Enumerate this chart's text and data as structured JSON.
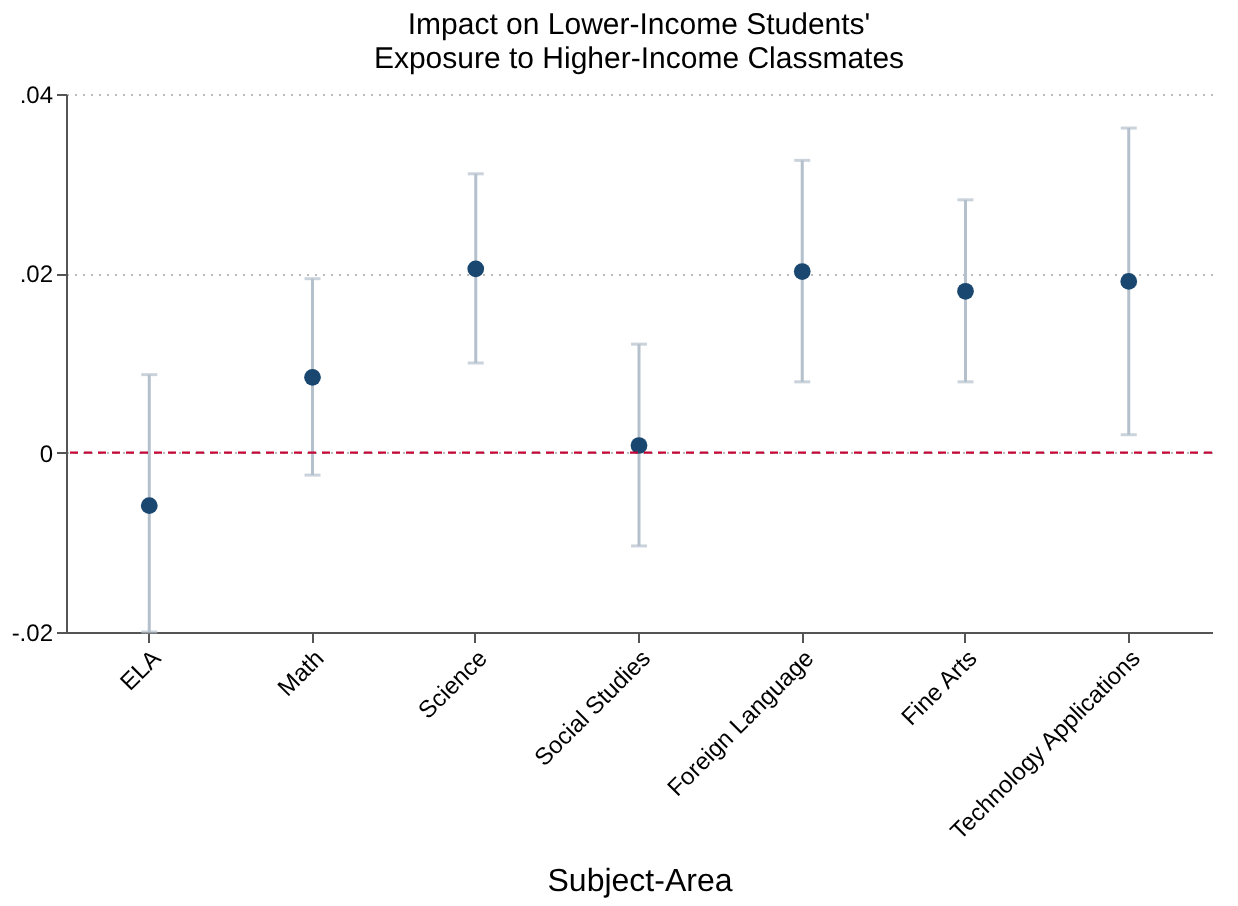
{
  "chart_data": {
    "type": "scatter",
    "title": "Impact on Lower-Income Students' Exposure to Higher-Income Classmates",
    "xlabel": "Subject-Area",
    "categories": [
      "ELA",
      "Math",
      "Science",
      "Social Studies",
      "Foreign Language",
      "Fine Arts",
      "Technology Applications"
    ],
    "series": [
      {
        "color": "#1a476f",
        "values": [
          -0.0059,
          0.0084,
          0.0205,
          0.0008,
          0.0202,
          0.018,
          0.0191
        ],
        "errors": [
          [
            -0.02,
            0.0087
          ],
          [
            -0.0025,
            0.0194
          ],
          [
            0.01,
            0.0311
          ],
          [
            -0.0104,
            0.0121
          ],
          [
            0.0079,
            0.0326
          ],
          [
            0.0079,
            0.0282
          ],
          [
            0.002,
            0.0362
          ]
        ]
      }
    ],
    "ylim": [
      -0.02,
      0.04
    ],
    "yticks": [
      {
        "value": -0.02,
        "label": "-.02"
      },
      0,
      {
        "value": 0.02,
        "label": ".02"
      },
      {
        "value": 0.04,
        "label": ".04"
      }
    ],
    "ref_lines": [
      {
        "axis": "y",
        "value": 0,
        "color": "#c10534",
        "line_style": "dashed"
      }
    ],
    "grid": "y",
    "marker": "circle"
  }
}
